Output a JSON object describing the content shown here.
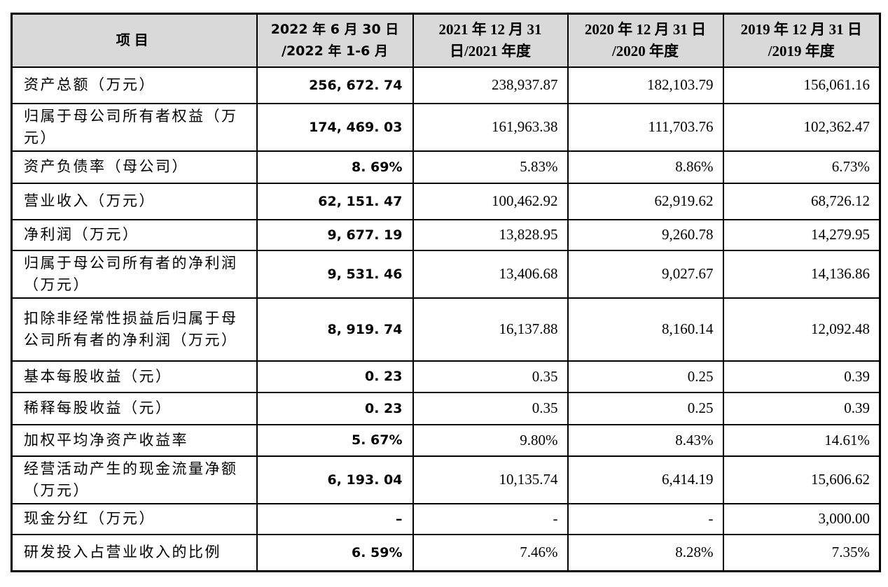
{
  "table": {
    "header_bg": "#d9d9d9",
    "border_color": "#000000",
    "item_header": "项目",
    "period_headers": [
      {
        "line1": "2022 年 6 月 30 日",
        "line2": "/2022 年 1-6 月"
      },
      {
        "line1": "2021 年 12 月 31",
        "line2": "日/2021 年度"
      },
      {
        "line1": "2020 年 12 月 31 日",
        "line2": "/2020 年度"
      },
      {
        "line1": "2019 年 12 月 31 日",
        "line2": "/2019 年度"
      }
    ],
    "rows": [
      {
        "label": "资产总额（万元）",
        "values": [
          "256, 672. 74",
          "238,937.87",
          "182,103.79",
          "156,061.16"
        ]
      },
      {
        "label": "归属于母公司所有者权益（万元）",
        "values": [
          "174, 469. 03",
          "161,963.38",
          "111,703.76",
          "102,362.47"
        ]
      },
      {
        "label": "资产负债率（母公司）",
        "values": [
          "8. 69%",
          "5.83%",
          "8.86%",
          "6.73%"
        ]
      },
      {
        "label": "营业收入（万元）",
        "values": [
          "62, 151. 47",
          "100,462.92",
          "62,919.62",
          "68,726.12"
        ]
      },
      {
        "label": "净利润（万元）",
        "values": [
          "9, 677. 19",
          "13,828.95",
          "9,260.78",
          "14,279.95"
        ]
      },
      {
        "label": "归属于母公司所有者的净利润（万元）",
        "values": [
          "9, 531. 46",
          "13,406.68",
          "9,027.67",
          "14,136.86"
        ]
      },
      {
        "label": "扣除非经常性损益后归属于母公司所有者的净利润（万元）",
        "values": [
          "8, 919. 74",
          "16,137.88",
          "8,160.14",
          "12,092.48"
        ]
      },
      {
        "label": "基本每股收益（元）",
        "values": [
          "0. 23",
          "0.35",
          "0.25",
          "0.39"
        ]
      },
      {
        "label": "稀释每股收益（元）",
        "values": [
          "0. 23",
          "0.35",
          "0.25",
          "0.39"
        ]
      },
      {
        "label": "加权平均净资产收益率",
        "values": [
          "5. 67%",
          "9.80%",
          "8.43%",
          "14.61%"
        ]
      },
      {
        "label": "经营活动产生的现金流量净额（万元）",
        "values": [
          "6, 193. 04",
          "10,135.74",
          "6,414.19",
          "15,606.62"
        ]
      },
      {
        "label": "现金分红（万元）",
        "values": [
          "–",
          "-",
          "-",
          "3,000.00"
        ]
      },
      {
        "label": "研发投入占营业收入的比例",
        "values": [
          "6. 59%",
          "7.46%",
          "8.28%",
          "7.35%"
        ]
      }
    ]
  }
}
